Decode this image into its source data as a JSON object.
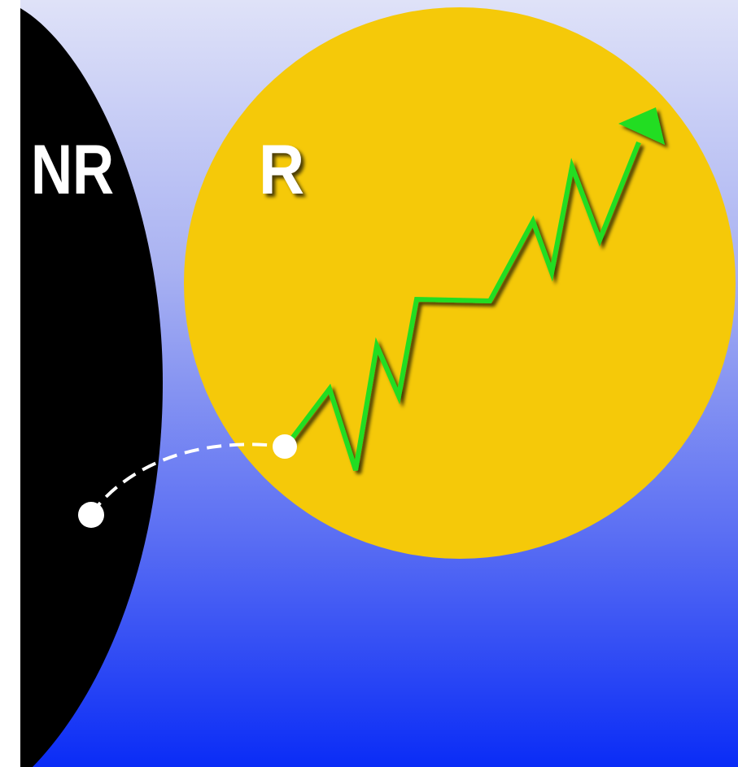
{
  "labels": {
    "non_responder": "NR",
    "responder": "R"
  }
}
